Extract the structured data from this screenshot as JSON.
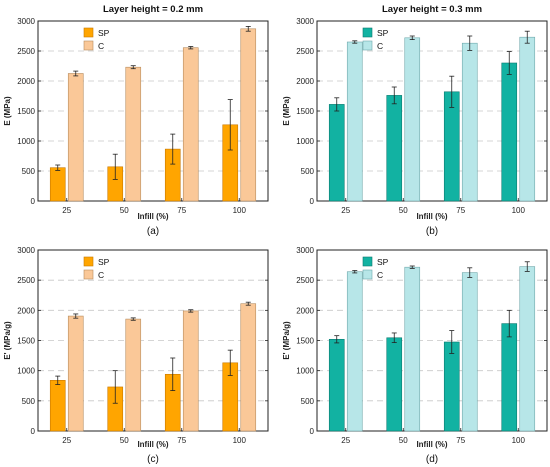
{
  "chart_data": [
    {
      "type": "bar",
      "panel": "(a)",
      "title": "Layer height = 0.2 mm",
      "xlabel": "Infill (%)",
      "ylabel": "E (MPa)",
      "ylim": [
        0,
        3000
      ],
      "yticks": [
        0,
        500,
        1000,
        1500,
        2000,
        2500,
        3000
      ],
      "categories": [
        "25",
        "50",
        "75",
        "100"
      ],
      "grid": "dashed horizontal",
      "legend_position": "top-left",
      "series": [
        {
          "name": "SP",
          "color": "#FFA500",
          "edge": "#C87800",
          "values": [
            555,
            570,
            865,
            1270
          ],
          "errors": [
            45,
            210,
            250,
            420
          ]
        },
        {
          "name": "C",
          "color": "#FAC898",
          "edge": "#B78C5E",
          "values": [
            2125,
            2230,
            2555,
            2870
          ],
          "errors": [
            40,
            25,
            20,
            40
          ]
        }
      ]
    },
    {
      "type": "bar",
      "panel": "(b)",
      "title": "Layer height = 0.3 mm",
      "xlabel": "Infill (%)",
      "ylabel": "E (MPa)",
      "ylim": [
        0,
        3000
      ],
      "yticks": [
        0,
        500,
        1000,
        1500,
        2000,
        2500,
        3000
      ],
      "categories": [
        "25",
        "50",
        "75",
        "100"
      ],
      "grid": "dashed horizontal",
      "legend_position": "top-left",
      "series": [
        {
          "name": "SP",
          "color": "#12B2A2",
          "edge": "#0A7A6F",
          "values": [
            1610,
            1760,
            1820,
            2300
          ],
          "errors": [
            110,
            140,
            260,
            190
          ]
        },
        {
          "name": "C",
          "color": "#B7E6E8",
          "edge": "#6FA8AB",
          "values": [
            2650,
            2720,
            2630,
            2730
          ],
          "errors": [
            20,
            30,
            120,
            100
          ]
        }
      ]
    },
    {
      "type": "bar",
      "panel": "(c)",
      "title": "",
      "xlabel": "Infill (%)",
      "ylabel": "E' (MPa/g)",
      "ylim": [
        0,
        3000
      ],
      "yticks": [
        0,
        500,
        1000,
        1500,
        2000,
        2500,
        3000
      ],
      "categories": [
        "25",
        "50",
        "75",
        "100"
      ],
      "grid": "dashed horizontal",
      "legend_position": "top-left",
      "series": [
        {
          "name": "SP",
          "color": "#FFA500",
          "edge": "#C87800",
          "values": [
            840,
            730,
            940,
            1130
          ],
          "errors": [
            70,
            270,
            270,
            210
          ]
        },
        {
          "name": "C",
          "color": "#FAC898",
          "edge": "#B78C5E",
          "values": [
            1905,
            1855,
            1990,
            2110
          ],
          "errors": [
            35,
            20,
            20,
            25
          ]
        }
      ]
    },
    {
      "type": "bar",
      "panel": "(d)",
      "title": "",
      "xlabel": "Infill (%)",
      "ylabel": "E' (MPa/g)",
      "ylim": [
        0,
        3000
      ],
      "yticks": [
        0,
        500,
        1000,
        1500,
        2000,
        2500,
        3000
      ],
      "categories": [
        "25",
        "50",
        "75",
        "100"
      ],
      "grid": "dashed horizontal",
      "legend_position": "top-left",
      "series": [
        {
          "name": "SP",
          "color": "#12B2A2",
          "edge": "#0A7A6F",
          "values": [
            1520,
            1545,
            1475,
            1780
          ],
          "errors": [
            60,
            80,
            190,
            220
          ]
        },
        {
          "name": "C",
          "color": "#B7E6E8",
          "edge": "#6FA8AB",
          "values": [
            2640,
            2715,
            2625,
            2725
          ],
          "errors": [
            20,
            20,
            80,
            80
          ]
        }
      ]
    }
  ]
}
